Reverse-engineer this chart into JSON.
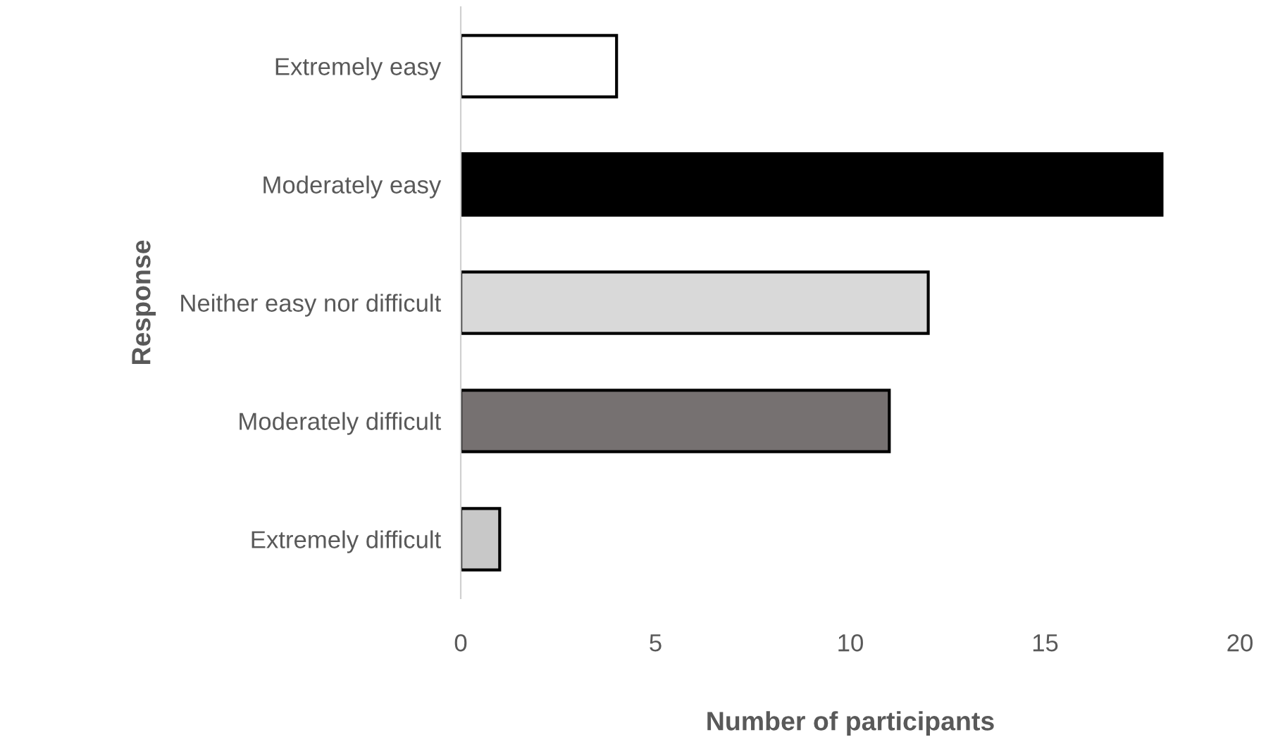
{
  "chart_data": {
    "type": "bar",
    "orientation": "horizontal",
    "xlabel": "Number of participants",
    "ylabel": "Response",
    "categories": [
      "Extremely easy",
      "Moderately easy",
      "Neither easy nor difficult",
      "Moderately difficult",
      "Extremely difficult"
    ],
    "values": [
      4,
      18,
      12,
      11,
      1
    ],
    "colors": [
      "#ffffff",
      "#000000",
      "#d9d9d9",
      "#767171",
      "#c8c8c8"
    ],
    "xlim": [
      0,
      20
    ],
    "xticks": [
      0,
      5,
      10,
      15,
      20
    ],
    "grid": false,
    "legend": false
  }
}
